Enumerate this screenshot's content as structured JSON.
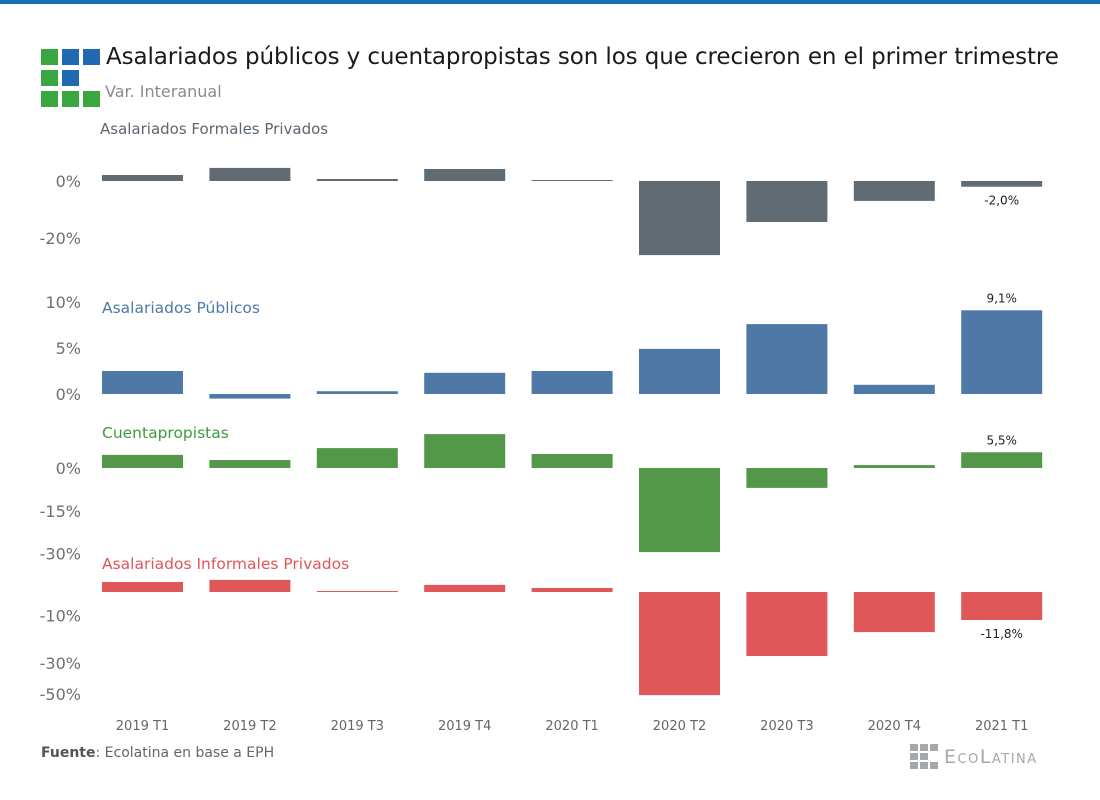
{
  "header": {
    "title": "Asalariados públicos y cuentapropistas son los que crecieron en el primer trimestre",
    "subtitle": "Var. Interanual",
    "logo_colors": [
      "#3aa640",
      "#1f6ab0",
      "#1f6ab0",
      "#3aa640",
      "#1f6ab0",
      "#3aa640",
      "#3aa640",
      "#3aa640"
    ]
  },
  "footer": {
    "source_label": "Fuente",
    "source_text": ": Ecolatina en base a EPH",
    "brand": "EcoLatina"
  },
  "chart_data": {
    "type": "bar",
    "title": "Asalariados públicos y cuentapropistas son los que crecieron en el primer trimestre",
    "subtitle": "Var. Interanual",
    "xlabel": "",
    "ylabel": "",
    "categories": [
      "2019 T1",
      "2019 T2",
      "2019 T3",
      "2019 T4",
      "2020 T1",
      "2020 T2",
      "2020 T3",
      "2020 T4",
      "2021 T1"
    ],
    "series": [
      {
        "name": "Asalariados Formales Privados",
        "color": "#616b74",
        "label_color": "#5c6670",
        "values": [
          2.1,
          4.6,
          0.7,
          4.2,
          0.1,
          -26.0,
          -14.4,
          -7.0,
          -2.0
        ],
        "ticks": [
          0,
          -20
        ],
        "tick_labels": [
          "0%",
          "-20%"
        ],
        "ylim": [
          -26,
          5
        ],
        "data_labels": [
          {
            "index": 8,
            "text": "-2,0%"
          }
        ]
      },
      {
        "name": "Asalariados Públicos",
        "color": "#4e79a7",
        "label_color": "#4e79a7",
        "values": [
          2.5,
          -0.5,
          0.3,
          2.3,
          2.5,
          4.9,
          7.6,
          1.0,
          9.1
        ],
        "ticks": [
          10,
          5,
          0
        ],
        "tick_labels": [
          "10%",
          "5%",
          "0%"
        ],
        "ylim": [
          -0.5,
          10
        ],
        "data_labels": [
          {
            "index": 8,
            "text": "9,1%"
          }
        ]
      },
      {
        "name": "Cuentapropistas",
        "color": "#539748",
        "label_color": "#3f9a3a",
        "values": [
          4.6,
          2.8,
          7.0,
          11.9,
          4.9,
          -29.5,
          -7.0,
          1.0,
          5.5
        ],
        "ticks": [
          0,
          -15,
          -30
        ],
        "tick_labels": [
          "0%",
          "-15%",
          "-30%"
        ],
        "ylim": [
          -30,
          12
        ],
        "data_labels": [
          {
            "index": 8,
            "text": "5,5%"
          }
        ]
      },
      {
        "name": "Asalariados Informales Privados",
        "color": "#e05759",
        "label_color": "#e05759",
        "values": [
          4.2,
          5.1,
          0.3,
          3.0,
          1.7,
          -43.5,
          -27.0,
          -16.9,
          -11.8
        ],
        "ticks": [
          -10,
          -30,
          -50
        ],
        "tick_labels": [
          "-10%",
          "-30%",
          "-50%"
        ],
        "ylim": [
          -50,
          5
        ],
        "data_labels": [
          {
            "index": 8,
            "text": "-11,8%"
          }
        ]
      }
    ],
    "grid": false,
    "legend": "panel-labels-inline"
  }
}
